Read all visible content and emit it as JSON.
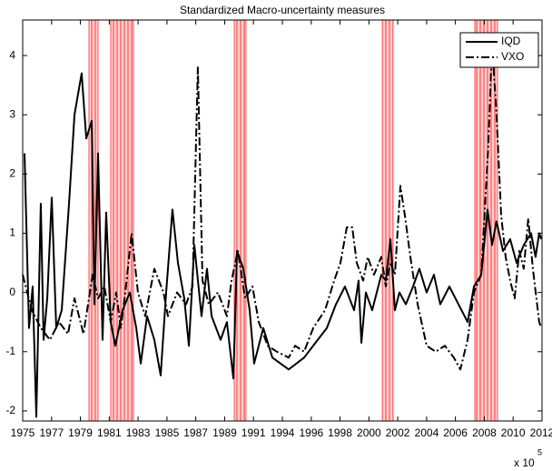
{
  "chart_data": {
    "type": "line",
    "title": "Standardized Macro-uncertainty measures",
    "x_exponent": {
      "base": "x 10",
      "power": "5"
    },
    "xlim": [
      1975,
      2012
    ],
    "ylim": [
      -2.17,
      4.6
    ],
    "xticks": [
      1975,
      {
        "value": 1977.06,
        "label": "1977"
      },
      {
        "value": 1979.11,
        "label": "1979"
      },
      {
        "value": 1981.17,
        "label": "1981"
      },
      {
        "value": 1983.22,
        "label": "1983"
      },
      {
        "value": 1985.28,
        "label": "1985"
      },
      {
        "value": 1987.33,
        "label": "1987"
      },
      {
        "value": 1989.39,
        "label": "1989"
      },
      {
        "value": 1991.44,
        "label": "1991"
      },
      {
        "value": 1993.5,
        "label": "1994"
      },
      {
        "value": 1995.56,
        "label": "1996"
      },
      {
        "value": 1997.61,
        "label": "1998"
      },
      {
        "value": 1999.67,
        "label": "2000"
      },
      {
        "value": 2001.72,
        "label": "2002"
      },
      {
        "value": 2003.78,
        "label": "2004"
      },
      {
        "value": 2005.83,
        "label": "2006"
      },
      {
        "value": 2007.89,
        "label": "2008"
      },
      {
        "value": 2009.94,
        "label": "2010"
      },
      2012
    ],
    "yticks": [
      -2,
      -1,
      0,
      1,
      2,
      3,
      4
    ],
    "grid": false,
    "legend": "top-right",
    "shaded_periods": [
      [
        1979.72,
        1980.37
      ],
      [
        1981.27,
        1982.89
      ],
      [
        1990.07,
        1990.91
      ],
      [
        2000.62,
        2001.39
      ],
      [
        2007.21,
        2008.83
      ]
    ],
    "shade_color": "#ff0000",
    "series": [
      {
        "name": "IQD",
        "color": "#000000",
        "style": "solid",
        "x": [
          1975.13,
          1975.45,
          1975.71,
          1975.97,
          1976.29,
          1976.49,
          1976.75,
          1977.07,
          1977.39,
          1977.78,
          1978.3,
          1978.69,
          1979.2,
          1979.53,
          1979.92,
          1980.11,
          1980.37,
          1980.69,
          1980.95,
          1981.27,
          1981.6,
          1982.12,
          1982.63,
          1983.09,
          1983.41,
          1983.86,
          1984.38,
          1984.83,
          1985.22,
          1985.67,
          1986.06,
          1986.51,
          1986.84,
          1987.23,
          1987.74,
          1988.13,
          1988.46,
          1989.1,
          1989.55,
          1990.01,
          1990.27,
          1990.72,
          1991.17,
          1991.49,
          1992.14,
          1992.79,
          1993.95,
          1995.05,
          1996.02,
          1996.67,
          1997.32,
          1997.96,
          1998.61,
          1998.93,
          1999.13,
          1999.45,
          1999.9,
          2000.55,
          2000.87,
          2001.2,
          2001.52,
          2001.84,
          2002.3,
          2002.81,
          2003.26,
          2003.78,
          2004.3,
          2004.75,
          2005.4,
          2006.05,
          2006.7,
          2007.15,
          2007.67,
          2008.12,
          2008.44,
          2008.76,
          2009.22,
          2009.73,
          2010.19,
          2010.7,
          2011.22,
          2011.54,
          2011.8,
          2011.95
        ],
        "values": [
          2.35,
          -0.6,
          0.1,
          -2.1,
          1.5,
          -0.8,
          -0.1,
          1.6,
          -0.6,
          -0.3,
          1.5,
          3.0,
          3.7,
          2.6,
          2.9,
          -0.2,
          2.35,
          -0.8,
          1.35,
          -0.5,
          -0.9,
          -0.3,
          0.0,
          -0.6,
          -1.2,
          -0.4,
          -0.8,
          -1.4,
          0.0,
          1.4,
          0.5,
          -0.1,
          -0.9,
          0.8,
          -0.4,
          0.4,
          -0.4,
          -0.8,
          -0.5,
          -1.45,
          0.7,
          0.4,
          -0.3,
          -1.2,
          -0.6,
          -1.1,
          -1.3,
          -1.1,
          -0.8,
          -0.6,
          -0.2,
          0.1,
          -0.3,
          0.2,
          -0.85,
          0.0,
          -0.3,
          0.3,
          0.2,
          0.9,
          -0.3,
          0.0,
          -0.2,
          0.1,
          0.4,
          0.0,
          0.3,
          -0.2,
          0.1,
          -0.2,
          -0.5,
          0.1,
          0.3,
          1.4,
          0.8,
          1.2,
          0.7,
          0.9,
          0.5,
          0.8,
          1.0,
          0.6,
          1.0,
          0.9
        ]
      },
      {
        "name": "VXO",
        "color": "#000000",
        "style": "dash-dot",
        "x": [
          1975.0,
          1975.65,
          1976.29,
          1976.94,
          1977.59,
          1978.23,
          1978.69,
          1979.33,
          1979.98,
          1980.37,
          1980.82,
          1981.27,
          1981.66,
          1981.99,
          1982.31,
          1982.76,
          1983.21,
          1983.73,
          1984.38,
          1985.03,
          1985.35,
          1986.0,
          1986.64,
          1987.1,
          1987.48,
          1987.81,
          1988.26,
          1988.91,
          1989.55,
          1989.88,
          1990.33,
          1990.85,
          1991.37,
          1991.82,
          1992.46,
          1993.11,
          1993.95,
          1994.41,
          1995.05,
          1995.7,
          1996.54,
          1997.19,
          1997.64,
          1998.09,
          1998.48,
          1998.8,
          1999.26,
          1999.58,
          2000.03,
          2000.55,
          2000.87,
          2001.2,
          2001.52,
          2001.91,
          2002.23,
          2002.62,
          2003.14,
          2003.78,
          2004.43,
          2005.08,
          2005.72,
          2006.18,
          2006.7,
          2007.15,
          2007.67,
          2008.18,
          2008.44,
          2008.76,
          2009.09,
          2009.41,
          2009.73,
          2010.05,
          2010.38,
          2010.7,
          2011.02,
          2011.35,
          2011.8,
          2011.95
        ],
        "values": [
          0.3,
          -0.3,
          -0.6,
          -0.8,
          -0.5,
          -0.7,
          -0.1,
          -0.7,
          0.3,
          -0.1,
          0.1,
          -0.5,
          0.0,
          -0.6,
          0.0,
          1.0,
          0.0,
          -0.4,
          0.4,
          0.0,
          -0.4,
          0.0,
          -0.2,
          0.1,
          3.8,
          0.2,
          -0.2,
          0.0,
          -0.4,
          0.2,
          0.7,
          -0.1,
          0.1,
          -0.5,
          -0.9,
          -1.0,
          -1.1,
          -0.9,
          -1.0,
          -0.6,
          -0.3,
          0.2,
          0.5,
          1.1,
          1.1,
          0.5,
          0.2,
          0.6,
          0.3,
          0.6,
          0.1,
          0.5,
          0.3,
          1.8,
          1.3,
          0.6,
          -0.2,
          -0.9,
          -1.0,
          -0.9,
          -1.1,
          -1.3,
          -0.8,
          0.0,
          0.3,
          2.5,
          4.2,
          3.0,
          1.3,
          0.6,
          0.2,
          -0.1,
          0.7,
          0.4,
          1.25,
          0.4,
          -0.5,
          -0.6
        ]
      }
    ]
  }
}
